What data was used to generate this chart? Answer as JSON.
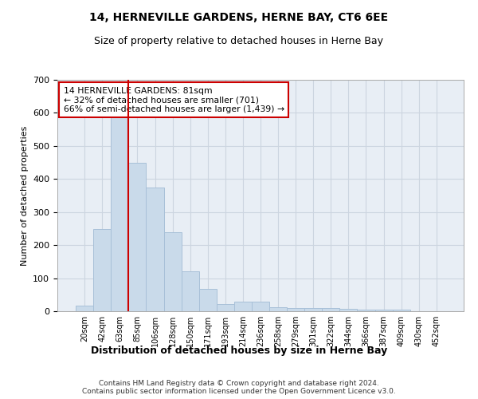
{
  "title": "14, HERNEVILLE GARDENS, HERNE BAY, CT6 6EE",
  "subtitle": "Size of property relative to detached houses in Herne Bay",
  "xlabel": "Distribution of detached houses by size in Herne Bay",
  "ylabel": "Number of detached properties",
  "footer": "Contains HM Land Registry data © Crown copyright and database right 2024.\nContains public sector information licensed under the Open Government Licence v3.0.",
  "categories": [
    "20sqm",
    "42sqm",
    "63sqm",
    "85sqm",
    "106sqm",
    "128sqm",
    "150sqm",
    "171sqm",
    "193sqm",
    "214sqm",
    "236sqm",
    "258sqm",
    "279sqm",
    "301sqm",
    "322sqm",
    "344sqm",
    "366sqm",
    "387sqm",
    "409sqm",
    "430sqm",
    "452sqm"
  ],
  "values": [
    18,
    248,
    590,
    448,
    375,
    238,
    120,
    68,
    22,
    30,
    30,
    12,
    10,
    9,
    9,
    8,
    6,
    4,
    4,
    1,
    0
  ],
  "bar_color": "#c9daea",
  "bar_edge_color": "#a8c0d8",
  "property_line_x": 2.5,
  "annotation_text": "14 HERNEVILLE GARDENS: 81sqm\n← 32% of detached houses are smaller (701)\n66% of semi-detached houses are larger (1,439) →",
  "annotation_box_color": "#ffffff",
  "annotation_box_edge": "#cc0000",
  "property_line_color": "#cc0000",
  "grid_color": "#ccd5e0",
  "background_color": "#e8eef5",
  "ylim": [
    0,
    700
  ],
  "yticks": [
    0,
    100,
    200,
    300,
    400,
    500,
    600,
    700
  ],
  "title_fontsize": 10,
  "subtitle_fontsize": 9,
  "ylabel_fontsize": 8,
  "xlabel_fontsize": 9
}
